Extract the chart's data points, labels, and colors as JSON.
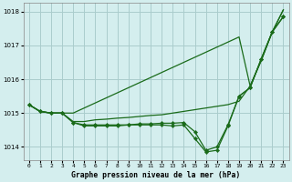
{
  "title": "Graphe pression niveau de la mer (hPa)",
  "background_color": "#d4eeee",
  "grid_color": "#aacccc",
  "line_color": "#1a6b1a",
  "marker_color": "#1a6b1a",
  "xlim": [
    -0.5,
    23.5
  ],
  "ylim": [
    1013.6,
    1018.25
  ],
  "yticks": [
    1014,
    1015,
    1016,
    1017,
    1018
  ],
  "xtick_labels": [
    "0",
    "1",
    "2",
    "3",
    "4",
    "5",
    "6",
    "7",
    "8",
    "9",
    "10",
    "11",
    "12",
    "13",
    "14",
    "15",
    "16",
    "17",
    "18",
    "19",
    "20",
    "21",
    "22",
    "23"
  ],
  "series": [
    {
      "data": [
        1015.25,
        1015.05,
        1015.0,
        1015.0,
        1015.0,
        1015.15,
        1015.3,
        1015.45,
        1015.6,
        1015.75,
        1015.9,
        1016.05,
        1016.2,
        1016.35,
        1016.5,
        1016.65,
        1016.8,
        1016.95,
        1017.1,
        1017.25,
        1015.8,
        1016.55,
        1017.4,
        1018.05
      ],
      "has_markers": false
    },
    {
      "data": [
        1015.25,
        1015.05,
        1015.0,
        1015.0,
        1014.75,
        1014.75,
        1014.8,
        1014.82,
        1014.85,
        1014.87,
        1014.9,
        1014.93,
        1014.95,
        1015.0,
        1015.05,
        1015.1,
        1015.15,
        1015.2,
        1015.25,
        1015.35,
        1015.8,
        1016.55,
        1017.4,
        1018.05
      ],
      "has_markers": false
    },
    {
      "data": [
        1015.25,
        1015.05,
        1015.0,
        1015.0,
        1014.72,
        1014.65,
        1014.65,
        1014.65,
        1014.65,
        1014.65,
        1014.68,
        1014.68,
        1014.7,
        1014.7,
        1014.72,
        1014.45,
        1013.9,
        1014.0,
        1014.65,
        1015.5,
        1015.75,
        1016.6,
        1017.4,
        1017.85
      ],
      "has_markers": true
    },
    {
      "data": [
        1015.25,
        1015.05,
        1015.0,
        1015.0,
        1014.72,
        1014.62,
        1014.62,
        1014.62,
        1014.62,
        1014.65,
        1014.65,
        1014.65,
        1014.65,
        1014.62,
        1014.65,
        1014.25,
        1013.85,
        1013.9,
        1014.62,
        1015.5,
        1015.75,
        1016.6,
        1017.4,
        1017.85
      ],
      "has_markers": true
    }
  ]
}
